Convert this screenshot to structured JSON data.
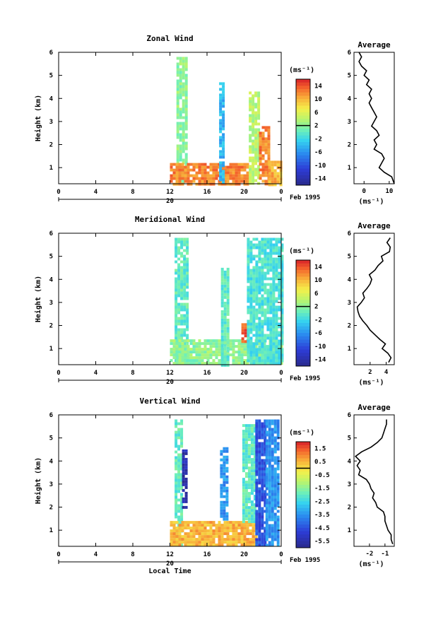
{
  "chart_data": [
    {
      "type": "heatmap",
      "title": "Zonal Wind",
      "ylabel": "Height (km)",
      "xlabel": "",
      "xticks": [
        "0",
        "4",
        "8",
        "12",
        "16",
        "20",
        "0"
      ],
      "yticks": [
        "1",
        "2",
        "3",
        "4",
        "5",
        "6"
      ],
      "day_label": "20",
      "date_label": "Feb 1995",
      "xlim": [
        0,
        24
      ],
      "ylim": [
        0.3,
        6
      ],
      "colorbar": {
        "unit": "(ms⁻¹)",
        "ticks": [
          "14",
          "10",
          "6",
          "2",
          "-2",
          "-6",
          "-10",
          "-14"
        ],
        "range": [
          -16,
          16
        ],
        "zero_line": 2
      },
      "note": "Data present only from about 12 to 24 local time; warm (red/orange) near surface, weaker aloft.",
      "data_mask": {
        "cols": [
          {
            "x0": 12.7,
            "x1": 13.9,
            "y0": 0.3,
            "y1": 5.8,
            "level": 2
          },
          {
            "x0": 12.0,
            "x1": 20.5,
            "y0": 0.3,
            "y1": 1.2,
            "level": 12
          },
          {
            "x0": 17.3,
            "x1": 17.9,
            "y0": 0.3,
            "y1": 4.7,
            "level": -4
          },
          {
            "x0": 20.5,
            "x1": 21.6,
            "y0": 0.3,
            "y1": 4.3,
            "level": 4
          },
          {
            "x0": 21.6,
            "x1": 22.6,
            "y0": 0.3,
            "y1": 2.8,
            "level": 12
          },
          {
            "x0": 22.6,
            "x1": 24.0,
            "y0": 0.3,
            "y1": 1.3,
            "level": 10
          }
        ]
      },
      "average": {
        "title": "Average",
        "xlabel": "(ms⁻¹)",
        "xticks": [
          "0",
          "10"
        ],
        "xlim": [
          -4,
          12
        ],
        "heights": [
          0.3,
          0.6,
          0.8,
          1.0,
          1.2,
          1.4,
          1.6,
          1.8,
          2.0,
          2.2,
          2.4,
          2.6,
          2.8,
          3.0,
          3.2,
          3.4,
          3.6,
          3.8,
          4.0,
          4.2,
          4.4,
          4.6,
          4.8,
          5.0,
          5.2,
          5.4,
          5.6,
          5.8,
          6.0
        ],
        "values": [
          12,
          11,
          8,
          6,
          7,
          8,
          7,
          4,
          5,
          4,
          6,
          5,
          3,
          4,
          5,
          4,
          3,
          2,
          3,
          2,
          3,
          1,
          2,
          0,
          1,
          -1,
          -2,
          -1,
          -2
        ]
      }
    },
    {
      "type": "heatmap",
      "title": "Meridional Wind",
      "ylabel": "Height (km)",
      "xlabel": "",
      "xticks": [
        "0",
        "4",
        "8",
        "12",
        "16",
        "20",
        "0"
      ],
      "yticks": [
        "1",
        "2",
        "3",
        "4",
        "5",
        "6"
      ],
      "day_label": "20",
      "date_label": "Feb 1995",
      "xlim": [
        0,
        24
      ],
      "ylim": [
        0.3,
        6
      ],
      "colorbar": {
        "unit": "(ms⁻¹)",
        "ticks": [
          "14",
          "10",
          "6",
          "2",
          "-2",
          "-6",
          "-10",
          "-14"
        ],
        "range": [
          -16,
          16
        ],
        "zero_line": 2
      },
      "data_mask": {
        "cols": [
          {
            "x0": 12.5,
            "x1": 13.8,
            "y0": 0.3,
            "y1": 5.8,
            "level": 0
          },
          {
            "x0": 12.0,
            "x1": 24.0,
            "y0": 0.3,
            "y1": 1.4,
            "level": 2
          },
          {
            "x0": 17.5,
            "x1": 18.2,
            "y0": 0.3,
            "y1": 4.5,
            "level": 0
          },
          {
            "x0": 19.7,
            "x1": 20.3,
            "y0": 1.3,
            "y1": 2.1,
            "level": 14
          },
          {
            "x0": 20.3,
            "x1": 24.0,
            "y0": 0.3,
            "y1": 5.8,
            "level": -1
          }
        ]
      },
      "average": {
        "title": "Average",
        "xlabel": "(ms⁻¹)",
        "xticks": [
          "2",
          "4"
        ],
        "xlim": [
          0,
          5
        ],
        "heights": [
          0.4,
          0.6,
          0.8,
          1.0,
          1.2,
          1.4,
          1.6,
          1.8,
          2.0,
          2.2,
          2.4,
          2.6,
          2.8,
          3.0,
          3.2,
          3.4,
          3.6,
          3.8,
          4.0,
          4.2,
          4.4,
          4.6,
          4.8,
          5.0,
          5.2,
          5.4,
          5.6,
          5.8
        ],
        "values": [
          4.3,
          4.6,
          4.2,
          3.5,
          3.9,
          3.2,
          2.6,
          2.0,
          1.6,
          1.1,
          0.7,
          0.5,
          0.4,
          0.9,
          1.3,
          1.1,
          1.6,
          2.0,
          2.2,
          1.9,
          2.6,
          3.0,
          3.6,
          3.4,
          4.4,
          4.5,
          4.1,
          4.5
        ]
      }
    },
    {
      "type": "heatmap",
      "title": "Vertical Wind",
      "ylabel": "Height (km)",
      "xlabel": "Local Time",
      "xticks": [
        "0",
        "4",
        "8",
        "12",
        "16",
        "20",
        "0"
      ],
      "yticks": [
        "1",
        "2",
        "3",
        "4",
        "5",
        "6"
      ],
      "day_label": "20",
      "date_label": "Feb 1995",
      "xlim": [
        0,
        24
      ],
      "ylim": [
        0.3,
        6
      ],
      "colorbar": {
        "unit": "(ms⁻¹)",
        "ticks": [
          "1.5",
          "0.5",
          "-0.5",
          "-1.5",
          "-2.5",
          "-3.5",
          "-4.5",
          "-5.5"
        ],
        "range": [
          -6,
          2
        ],
        "zero_line": 0
      },
      "data_mask": {
        "cols": [
          {
            "x0": 12.5,
            "x1": 13.3,
            "y0": 0.3,
            "y1": 5.8,
            "level": -2
          },
          {
            "x0": 13.3,
            "x1": 13.8,
            "y0": 2.0,
            "y1": 4.5,
            "level": -5.5
          },
          {
            "x0": 12.0,
            "x1": 21.2,
            "y0": 0.3,
            "y1": 1.4,
            "level": 0.5
          },
          {
            "x0": 17.4,
            "x1": 18.2,
            "y0": 1.5,
            "y1": 4.6,
            "level": -3.5
          },
          {
            "x0": 19.8,
            "x1": 21.2,
            "y0": 1.4,
            "y1": 5.6,
            "level": -2
          },
          {
            "x0": 21.2,
            "x1": 22.3,
            "y0": 0.3,
            "y1": 5.8,
            "level": -4.5
          },
          {
            "x0": 22.3,
            "x1": 23.6,
            "y0": 0.3,
            "y1": 5.8,
            "level": -3.5
          }
        ]
      },
      "average": {
        "title": "Average",
        "xlabel": "(ms⁻¹)",
        "xticks": [
          "-2",
          "-1"
        ],
        "xlim": [
          -3,
          -0.4
        ],
        "heights": [
          0.4,
          0.6,
          0.8,
          1.0,
          1.2,
          1.4,
          1.6,
          1.8,
          2.0,
          2.2,
          2.4,
          2.6,
          2.8,
          3.0,
          3.2,
          3.4,
          3.6,
          3.8,
          4.0,
          4.2,
          4.4,
          4.6,
          4.8,
          5.0,
          5.2,
          5.4,
          5.6,
          5.8
        ],
        "values": [
          -0.5,
          -0.6,
          -0.6,
          -0.8,
          -0.9,
          -1.0,
          -1.0,
          -1.1,
          -1.5,
          -1.6,
          -1.8,
          -1.7,
          -1.9,
          -2.0,
          -2.2,
          -2.7,
          -2.6,
          -2.8,
          -2.6,
          -2.9,
          -2.5,
          -1.9,
          -1.5,
          -1.2,
          -1.1,
          -1.0,
          -0.9,
          -0.9
        ]
      }
    }
  ]
}
